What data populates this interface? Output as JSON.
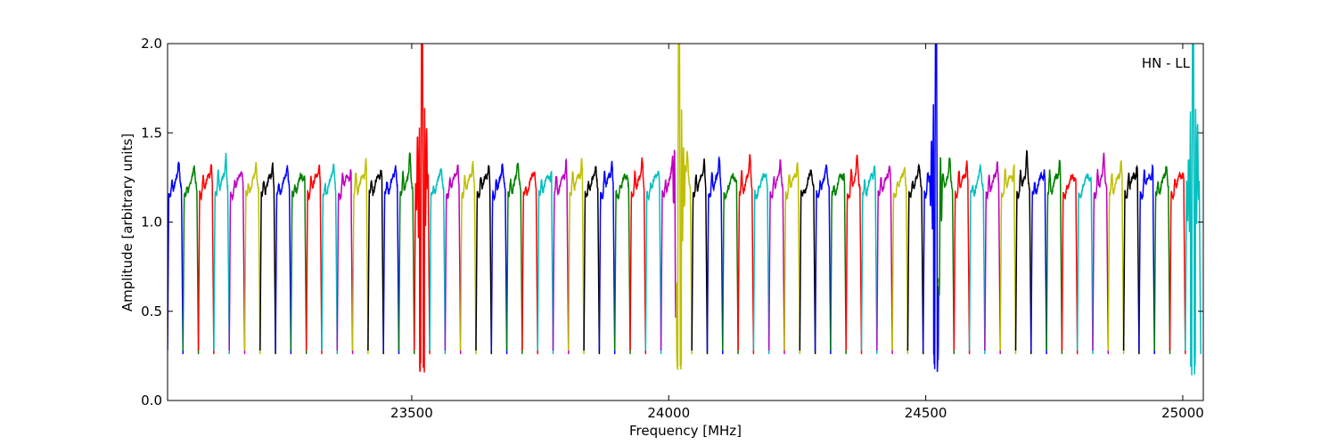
{
  "chart_data": {
    "type": "line",
    "title": "",
    "xlabel": "Frequency [MHz]",
    "ylabel": "Amplitude [arbitrary units]",
    "xlim": [
      23025,
      25040
    ],
    "ylim": [
      0.0,
      2.0
    ],
    "x_ticks": [
      23500,
      24000,
      24500,
      25000
    ],
    "x_tick_labels": [
      "23500",
      "24000",
      "24500",
      "25000"
    ],
    "y_ticks": [
      0.0,
      0.5,
      1.0,
      1.5,
      2.0
    ],
    "y_tick_labels": [
      "0.0",
      "0.5",
      "1.0",
      "1.5",
      "2.0"
    ],
    "annotation": "HN - LL",
    "grid": false,
    "legend": "none",
    "series_colors": [
      "#0000ff",
      "#008000",
      "#ff0000",
      "#00bfbf",
      "#bf00bf",
      "#bfbf00",
      "#000000"
    ],
    "channel_boundaries_mhz": [
      23025,
      23055,
      23085,
      23115,
      23145,
      23175,
      23205,
      23235,
      23265,
      23295,
      23325,
      23355,
      23385,
      23415,
      23445,
      23475,
      23505,
      23535,
      23565,
      23595,
      23625,
      23655,
      23685,
      23715,
      23745,
      23775,
      23805,
      23835,
      23865,
      23895,
      23925,
      23955,
      23985,
      24015,
      24045,
      24075,
      24105,
      24135,
      24165,
      24195,
      24225,
      24255,
      24285,
      24315,
      24345,
      24375,
      24405,
      24435,
      24465,
      24495,
      24525,
      24555,
      24585,
      24615,
      24645,
      24675,
      24705,
      24735,
      24765,
      24795,
      24825,
      24855,
      24885,
      24915,
      24945,
      24975,
      25005,
      25035
    ],
    "channel_plateau_amplitude": 1.2,
    "channel_edge_minimum": 0.28,
    "spike_centers_mhz": [
      23520,
      24020,
      24520,
      25020
    ],
    "spike_peak_amplitude": 2.0,
    "spike_min_amplitude": 0.14
  }
}
